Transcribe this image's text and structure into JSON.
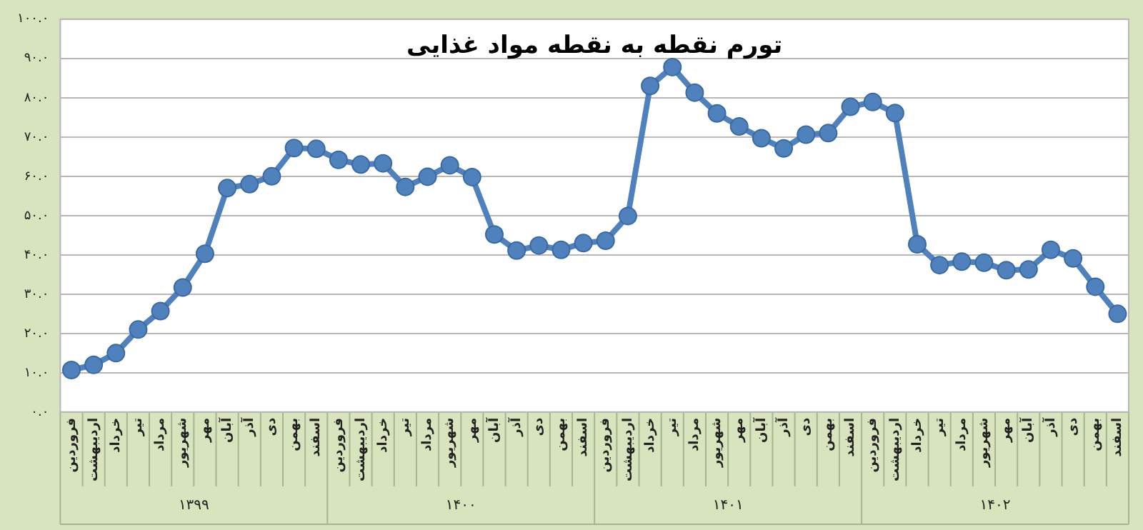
{
  "chart_data": {
    "type": "line",
    "title": "تورم نقطه به نقطه مواد غذایی",
    "categories": [
      "فروردین",
      "اردیبهشت",
      "خرداد",
      "تیر",
      "مرداد",
      "شهریور",
      "مهر",
      "آبان",
      "آذر",
      "دی",
      "بهمن",
      "اسفند",
      "فروردین",
      "اردیبهشت",
      "خرداد",
      "تیر",
      "مرداد",
      "شهریور",
      "مهر",
      "آبان",
      "آذر",
      "دی",
      "بهمن",
      "اسفند",
      "فروردین",
      "اردیبهشت",
      "خرداد",
      "تیر",
      "مرداد",
      "شهریور",
      "مهر",
      "آبان",
      "آذر",
      "دی",
      "بهمن",
      "اسفند",
      "فروردین",
      "اردیبهشت",
      "خرداد",
      "تیر",
      "مرداد",
      "شهریور",
      "مهر",
      "آبان",
      "آذر",
      "دی",
      "بهمن",
      "اسفند"
    ],
    "series": [
      {
        "color": "#4f81bd",
        "values": [
          10.7,
          12,
          15,
          21,
          25.7,
          31.7,
          40.3,
          57,
          58,
          60,
          67.2,
          67,
          64.2,
          63,
          63.3,
          57.3,
          59.9,
          62.8,
          59.8,
          45.2,
          41.1,
          42.4,
          41.3,
          43,
          43.6,
          49.9,
          83,
          87.8,
          81.3,
          76,
          72.7,
          69.7,
          67.1,
          70.6,
          71,
          77.7,
          78.9,
          76.1,
          42.7,
          37.4,
          38.3,
          38,
          36.1,
          36.3,
          41.3,
          39.1,
          31.9,
          25
        ]
      }
    ],
    "ylim": [
      0,
      100
    ],
    "yticks": [
      {
        "value": 0,
        "label": "۰.۰"
      },
      {
        "value": 10,
        "label": "۱۰.۰"
      },
      {
        "value": 20,
        "label": "۲۰.۰"
      },
      {
        "value": 30,
        "label": "۳۰.۰"
      },
      {
        "value": 40,
        "label": "۴۰.۰"
      },
      {
        "value": 50,
        "label": "۵۰.۰"
      },
      {
        "value": 60,
        "label": "۶۰.۰"
      },
      {
        "value": 70,
        "label": "۷۰.۰"
      },
      {
        "value": 80,
        "label": "۸۰.۰"
      },
      {
        "value": 90,
        "label": "۹۰.۰"
      },
      {
        "value": 100,
        "label": "۱۰۰.۰"
      }
    ],
    "annotations": [
      "۱۳۹۹",
      "۱۴۰۰",
      "۱۴۰۱",
      "۱۴۰۲"
    ],
    "grid": "y",
    "legend": false,
    "marker": "circle",
    "line_style": "solid"
  }
}
